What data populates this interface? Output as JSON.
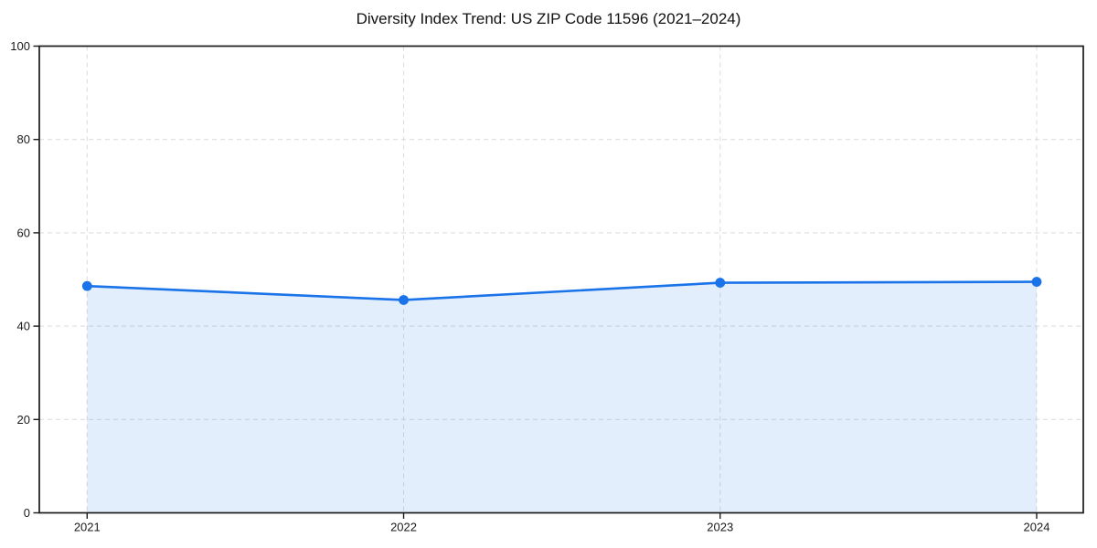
{
  "chart_data": {
    "type": "line",
    "title": "Diversity Index Trend: US ZIP Code 11596 (2021–2024)",
    "categories": [
      "2021",
      "2022",
      "2023",
      "2024"
    ],
    "series": [
      {
        "name": "Diversity Index",
        "values": [
          48.6,
          45.6,
          49.3,
          49.5
        ]
      }
    ],
    "xlabel": "",
    "ylabel": "",
    "ylim": [
      0,
      100
    ],
    "yticks": [
      0,
      20,
      40,
      60,
      80,
      100
    ],
    "grid": "dashed-horizontal-and-vertical",
    "legend": "none",
    "marker": "circle",
    "area_fill": true,
    "colors": {
      "line": "#1a73e8",
      "marker": "#1a73e8",
      "area_fill": "rgba(26,115,232,0.12)",
      "grid": "#dedede",
      "axis": "#1a1a1a",
      "tick_text": "#1a1a1a",
      "title_text": "#111111",
      "background": "#ffffff"
    }
  }
}
